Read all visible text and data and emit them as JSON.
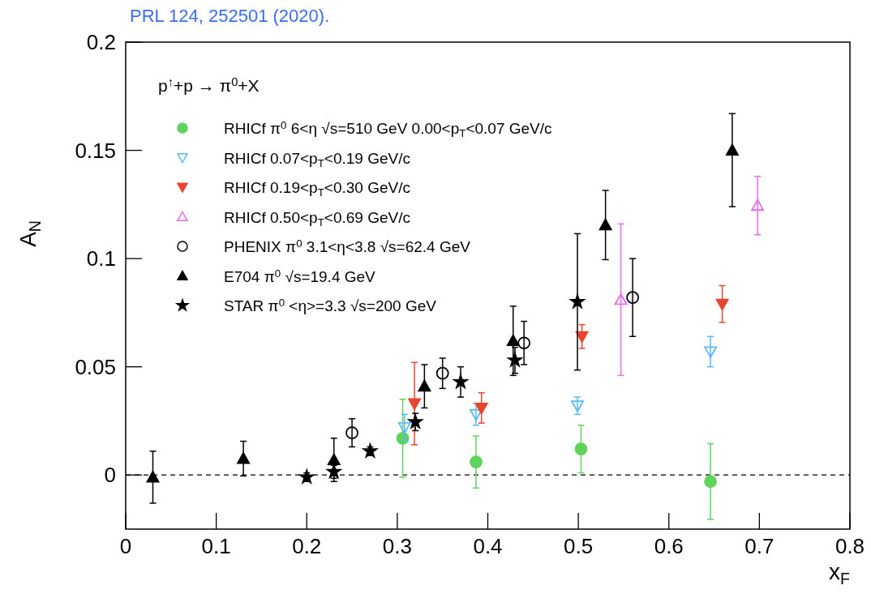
{
  "chart_data": {
    "type": "scatter",
    "xlabel": "x$_{F}$",
    "ylabel": "A$_{N}$",
    "legend_title": "p$^{↑}$+p → π$^{0}$+X",
    "annotations": [
      "PRL 124, 252501 (2020)."
    ],
    "xlim": [
      0,
      0.8
    ],
    "ylim": [
      -0.025,
      0.2
    ],
    "xticks": [
      0,
      0.1,
      0.2,
      0.3,
      0.4,
      0.5,
      0.6,
      0.7,
      0.8
    ],
    "yticks": [
      0,
      0.05,
      0.1,
      0.15,
      0.2
    ],
    "grid": false,
    "legend": "top left",
    "ref_lines": [
      {
        "axis": "y",
        "value": 0,
        "label": null,
        "color": "#000000",
        "line_style": "dashed"
      }
    ],
    "series": [
      {
        "name": "RHICf π$^{0}$ 6<η √s=510 GeV 0.00<p$_{T}$<0.07 GeV/c",
        "color": "#5fd35a",
        "marker": "circle",
        "x": [
          0.306,
          0.387,
          0.503,
          0.646
        ],
        "values": [
          0.017,
          0.006,
          0.012,
          -0.003
        ],
        "errors": [
          0.018,
          0.012,
          0.011,
          0.0175
        ]
      },
      {
        "name": "RHICf 0.07<p$_{T}$<0.19 GeV/c",
        "color": "#5ab8f5",
        "marker": "triangle-down-open",
        "x": [
          0.308,
          0.387,
          0.499,
          0.646
        ],
        "values": [
          0.022,
          0.028,
          0.032,
          0.057
        ],
        "errors": [
          0.006,
          0.005,
          0.004,
          0.007
        ]
      },
      {
        "name": "RHICf 0.19<p$_{T}$<0.30 GeV/c",
        "color": "#e8442e",
        "marker": "triangle-down",
        "x": [
          0.319,
          0.393,
          0.504,
          0.659
        ],
        "values": [
          0.033,
          0.031,
          0.064,
          0.079
        ],
        "errors": [
          0.019,
          0.007,
          0.0055,
          0.0085
        ]
      },
      {
        "name": "RHICf 0.50<p$_{T}$<0.69 GeV/c",
        "color": "#e66ce8",
        "marker": "triangle-open",
        "x": [
          0.547,
          0.698
        ],
        "values": [
          0.081,
          0.1245
        ],
        "errors": [
          0.035,
          0.0135
        ]
      },
      {
        "name": "PHENIX π$^{0}$ 3.1<η<3.8 √s=62.4 GeV",
        "color": "#000000",
        "marker": "circle-open",
        "x": [
          0.25,
          0.35,
          0.44,
          0.56
        ],
        "values": [
          0.0195,
          0.047,
          0.061,
          0.082
        ],
        "errors": [
          0.0065,
          0.007,
          0.01,
          0.018
        ]
      },
      {
        "name": "E704 π$^{0}$ √s=19.4 GeV",
        "color": "#000000",
        "marker": "triangle",
        "x": [
          0.03,
          0.13,
          0.23,
          0.33,
          0.428,
          0.53,
          0.67
        ],
        "values": [
          -0.001,
          0.0076,
          0.007,
          0.041,
          0.062,
          0.1155,
          0.15
        ],
        "errors": [
          0.012,
          0.008,
          0.01,
          0.01,
          0.016,
          0.016,
          [
            0.124,
            0.167
          ]
        ]
      },
      {
        "name": "STAR π$^{0}$ <η>=3.3 √s=200 GeV",
        "color": "#000000",
        "marker": "star",
        "x": [
          0.2,
          0.23,
          0.27,
          0.32,
          0.37,
          0.43,
          0.499
        ],
        "values": [
          -0.001,
          0.0015,
          0.011,
          0.0245,
          0.043,
          0.053,
          0.08
        ],
        "errors": [
          0.002,
          0.003,
          0.002,
          0.004,
          0.007,
          0.006,
          0.0315
        ]
      }
    ]
  }
}
